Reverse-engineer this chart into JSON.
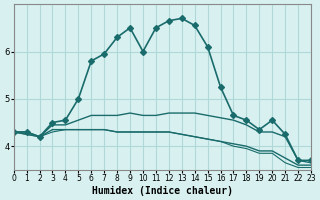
{
  "xlabel": "Humidex (Indice chaleur)",
  "bg_color": "#d8f0f0",
  "grid_color": "#b0d8d8",
  "line_color": "#1a6b6b",
  "xlim": [
    0,
    23
  ],
  "ylim": [
    3.5,
    7.0
  ],
  "yticks": [
    4,
    5,
    6
  ],
  "xticks": [
    0,
    1,
    2,
    3,
    4,
    5,
    6,
    7,
    8,
    9,
    10,
    11,
    12,
    13,
    14,
    15,
    16,
    17,
    18,
    19,
    20,
    21,
    22,
    23
  ],
  "series": [
    {
      "x": [
        0,
        1,
        2,
        3,
        4,
        5,
        6,
        7,
        8,
        9,
        10,
        11,
        12,
        13,
        14,
        15,
        16,
        17,
        18,
        19,
        20,
        21,
        22,
        23
      ],
      "y": [
        4.3,
        4.3,
        4.2,
        4.5,
        4.55,
        5.0,
        5.8,
        5.95,
        6.3,
        6.5,
        6.0,
        6.5,
        6.65,
        6.7,
        6.55,
        6.1,
        5.25,
        4.65,
        4.55,
        4.35,
        4.55,
        4.25,
        3.7,
        3.7
      ],
      "marker": "D",
      "markersize": 3,
      "linewidth": 1.2
    },
    {
      "x": [
        0,
        1,
        2,
        3,
        4,
        5,
        6,
        7,
        8,
        9,
        10,
        11,
        12,
        13,
        14,
        15,
        16,
        17,
        18,
        19,
        20,
        21,
        22,
        23
      ],
      "y": [
        4.3,
        4.3,
        4.2,
        4.45,
        4.45,
        4.55,
        4.65,
        4.65,
        4.65,
        4.7,
        4.65,
        4.65,
        4.7,
        4.7,
        4.7,
        4.65,
        4.6,
        4.55,
        4.45,
        4.3,
        4.3,
        4.2,
        3.7,
        3.65
      ],
      "marker": null,
      "markersize": 0,
      "linewidth": 1.0
    },
    {
      "x": [
        0,
        1,
        2,
        3,
        4,
        5,
        6,
        7,
        8,
        9,
        10,
        11,
        12,
        13,
        14,
        15,
        16,
        17,
        18,
        19,
        20,
        21,
        22,
        23
      ],
      "y": [
        4.3,
        4.25,
        4.2,
        4.35,
        4.35,
        4.35,
        4.35,
        4.35,
        4.3,
        4.3,
        4.3,
        4.3,
        4.3,
        4.25,
        4.2,
        4.15,
        4.1,
        4.05,
        4.0,
        3.9,
        3.9,
        3.75,
        3.6,
        3.6
      ],
      "marker": null,
      "markersize": 0,
      "linewidth": 1.0
    },
    {
      "x": [
        0,
        1,
        2,
        3,
        4,
        5,
        6,
        7,
        8,
        9,
        10,
        11,
        12,
        13,
        14,
        15,
        16,
        17,
        18,
        19,
        20,
        21,
        22,
        23
      ],
      "y": [
        4.3,
        4.25,
        4.2,
        4.3,
        4.35,
        4.35,
        4.35,
        4.35,
        4.3,
        4.3,
        4.3,
        4.3,
        4.3,
        4.25,
        4.2,
        4.15,
        4.1,
        4.0,
        3.95,
        3.85,
        3.85,
        3.65,
        3.55,
        3.55
      ],
      "marker": null,
      "markersize": 0,
      "linewidth": 0.8
    }
  ]
}
